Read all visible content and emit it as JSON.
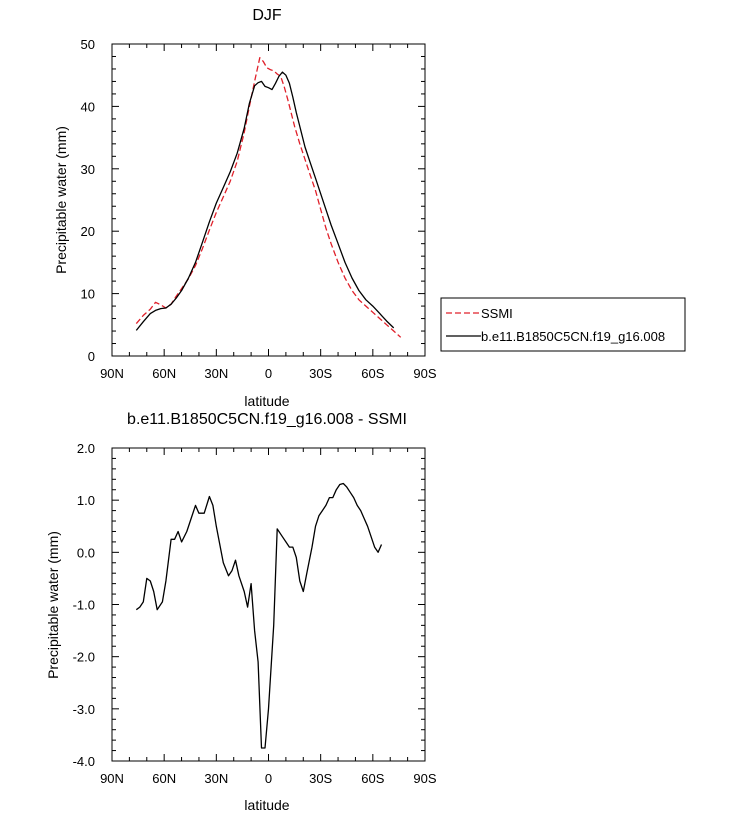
{
  "chart_data": [
    {
      "type": "line",
      "title": "DJF",
      "xlabel": "latitude",
      "ylabel": "Precipitable water (mm)",
      "xlim": [
        -90,
        90
      ],
      "ylim": [
        0,
        50
      ],
      "x_ticks": [
        {
          "value": -90,
          "label": "90N"
        },
        {
          "value": -60,
          "label": "60N"
        },
        {
          "value": -30,
          "label": "30N"
        },
        {
          "value": 0,
          "label": "0"
        },
        {
          "value": 30,
          "label": "30S"
        },
        {
          "value": 60,
          "label": "60S"
        },
        {
          "value": 90,
          "label": "90S"
        }
      ],
      "y_ticks": [
        {
          "value": 0,
          "label": "0"
        },
        {
          "value": 10,
          "label": "10"
        },
        {
          "value": 20,
          "label": "20"
        },
        {
          "value": 30,
          "label": "30"
        },
        {
          "value": 40,
          "label": "40"
        },
        {
          "value": 50,
          "label": "50"
        }
      ],
      "legend_position": "right",
      "series": [
        {
          "name": "SSMI",
          "color": "#e0202a",
          "style": "dashed",
          "x": [
            -76,
            -72,
            -68,
            -65,
            -62,
            -59,
            -56,
            -53,
            -50,
            -46,
            -42,
            -38,
            -34,
            -30,
            -26,
            -22,
            -18,
            -14,
            -11,
            -8,
            -5,
            -3,
            -1,
            1,
            3,
            5,
            7,
            9,
            11,
            13,
            15,
            18,
            21,
            24,
            27,
            30,
            33,
            36,
            40,
            44,
            48,
            52,
            56,
            60,
            64,
            68,
            72,
            76
          ],
          "y": [
            5.2,
            6.5,
            7.5,
            8.6,
            8.2,
            7.7,
            8.3,
            9.6,
            10.8,
            12.4,
            14.5,
            17.2,
            20.2,
            23.0,
            25.5,
            28.0,
            31.2,
            35.8,
            40.0,
            44.0,
            47.8,
            47.2,
            46.2,
            45.9,
            45.7,
            45.2,
            44.8,
            43.2,
            41.2,
            39.0,
            36.8,
            34.0,
            31.5,
            29.0,
            26.5,
            23.5,
            20.5,
            18.0,
            15.0,
            12.5,
            10.5,
            9.0,
            8.0,
            7.0,
            6.0,
            5.0,
            4.0,
            3.0
          ]
        },
        {
          "name": "b.e11.B1850C5CN.f19_g16.008",
          "color": "#000000",
          "style": "solid",
          "x": [
            -76,
            -72,
            -68,
            -65,
            -62,
            -59,
            -56,
            -53,
            -50,
            -46,
            -42,
            -38,
            -34,
            -30,
            -26,
            -22,
            -18,
            -14,
            -11,
            -8,
            -6,
            -4,
            -2,
            0,
            2,
            4,
            6,
            8,
            10,
            12,
            14,
            16,
            18,
            21,
            24,
            27,
            30,
            33,
            36,
            40,
            44,
            48,
            52,
            56,
            60,
            64,
            68,
            72
          ],
          "y": [
            4.1,
            5.5,
            6.8,
            7.3,
            7.6,
            7.7,
            8.3,
            9.3,
            10.5,
            12.5,
            15.0,
            18.2,
            21.5,
            24.5,
            27.0,
            29.5,
            32.5,
            36.5,
            40.5,
            43.3,
            43.8,
            44.0,
            43.2,
            43.0,
            42.7,
            43.7,
            44.8,
            45.5,
            45.0,
            43.7,
            41.5,
            39.0,
            36.8,
            33.5,
            31.0,
            28.5,
            26.0,
            23.5,
            21.0,
            18.0,
            15.0,
            12.5,
            10.5,
            9.0,
            8.0,
            6.8,
            5.6,
            4.5
          ]
        }
      ]
    },
    {
      "type": "line",
      "title": "b.e11.B1850C5CN.f19_g16.008 - SSMI",
      "xlabel": "latitude",
      "ylabel": "Precipitable water (mm)",
      "xlim": [
        -90,
        90
      ],
      "ylim": [
        -4.0,
        2.0
      ],
      "x_ticks": [
        {
          "value": -90,
          "label": "90N"
        },
        {
          "value": -60,
          "label": "60N"
        },
        {
          "value": -30,
          "label": "30N"
        },
        {
          "value": 0,
          "label": "0"
        },
        {
          "value": 30,
          "label": "30S"
        },
        {
          "value": 60,
          "label": "60S"
        },
        {
          "value": 90,
          "label": "90S"
        }
      ],
      "y_ticks": [
        {
          "value": -4.0,
          "label": "-4.0"
        },
        {
          "value": -3.0,
          "label": "-3.0"
        },
        {
          "value": -2.0,
          "label": "-2.0"
        },
        {
          "value": -1.0,
          "label": "-1.0"
        },
        {
          "value": 0.0,
          "label": "0.0"
        },
        {
          "value": 1.0,
          "label": "1.0"
        },
        {
          "value": 2.0,
          "label": "2.0"
        }
      ],
      "series": [
        {
          "color": "#000000",
          "style": "solid",
          "x": [
            -76,
            -74,
            -72,
            -70,
            -68,
            -66,
            -64,
            -61,
            -59,
            -56,
            -54,
            -52,
            -50,
            -47,
            -45,
            -42,
            -40,
            -37,
            -34,
            -32,
            -30,
            -28,
            -26,
            -23,
            -21,
            -19,
            -17,
            -14,
            -12,
            -10,
            -8,
            -6,
            -4,
            -2,
            0,
            3,
            5,
            8,
            10,
            12,
            14,
            16,
            18,
            20,
            22,
            25,
            27,
            29,
            31,
            33,
            35,
            37,
            39,
            41,
            43,
            45,
            47,
            49,
            51,
            53,
            55,
            57,
            59,
            61,
            63,
            65
          ],
          "y": [
            -1.1,
            -1.05,
            -0.95,
            -0.5,
            -0.55,
            -0.75,
            -1.1,
            -0.95,
            -0.55,
            0.25,
            0.25,
            0.4,
            0.2,
            0.4,
            0.6,
            0.9,
            0.75,
            0.75,
            1.07,
            0.9,
            0.5,
            0.15,
            -0.2,
            -0.45,
            -0.35,
            -0.15,
            -0.45,
            -0.75,
            -1.05,
            -0.6,
            -1.5,
            -2.1,
            -3.75,
            -3.75,
            -3.0,
            -1.4,
            0.45,
            0.3,
            0.2,
            0.1,
            0.1,
            -0.1,
            -0.55,
            -0.75,
            -0.4,
            0.1,
            0.5,
            0.7,
            0.8,
            0.9,
            1.05,
            1.05,
            1.2,
            1.3,
            1.32,
            1.25,
            1.15,
            1.05,
            0.9,
            0.8,
            0.65,
            0.5,
            0.3,
            0.1,
            0.0,
            0.15
          ]
        }
      ]
    }
  ]
}
